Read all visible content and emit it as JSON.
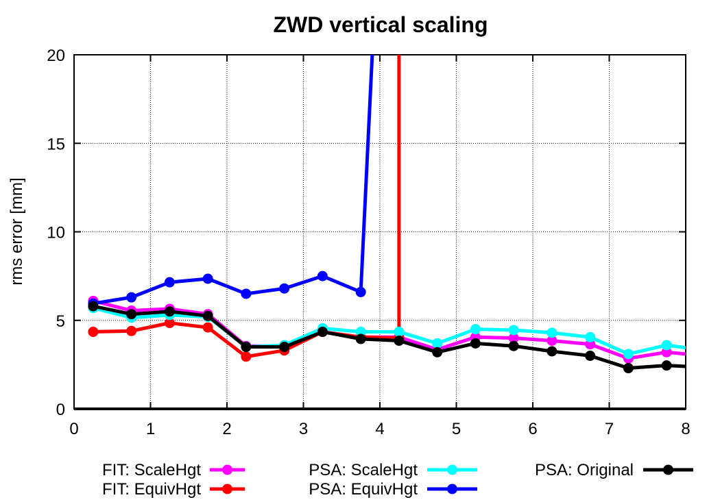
{
  "chart_data": {
    "type": "line",
    "title": "ZWD vertical scaling",
    "xlabel": "",
    "ylabel": "rms error [mm]",
    "xlim": [
      0,
      8
    ],
    "ylim": [
      0,
      20
    ],
    "x_ticks": [
      "0",
      "1",
      "2",
      "3",
      "4",
      "5",
      "6",
      "7",
      "8"
    ],
    "y_ticks": [
      "0",
      "5",
      "10",
      "15",
      "20"
    ],
    "grid": true,
    "legend_position": "bottom",
    "series": [
      {
        "name": "FIT: ScaleHgt",
        "color": "#ff00ff",
        "x": [
          0.25,
          0.75,
          1.25,
          1.75,
          2.25,
          2.75,
          3.25,
          3.75,
          4.25,
          4.75,
          5.25,
          5.75,
          6.25,
          6.75,
          7.25,
          7.75,
          8.0
        ],
        "y": [
          6.1,
          5.55,
          5.65,
          5.35,
          3.55,
          3.55,
          4.35,
          4.05,
          4.05,
          3.35,
          4.05,
          4.0,
          3.85,
          3.65,
          2.85,
          3.2,
          3.1
        ]
      },
      {
        "name": "FIT: EquivHgt",
        "color": "#ff0000",
        "x": [
          0.25,
          0.75,
          1.25,
          1.75,
          2.25,
          2.75,
          3.25,
          3.75,
          4.25,
          4.25
        ],
        "y": [
          4.35,
          4.4,
          4.85,
          4.6,
          2.95,
          3.3,
          4.35,
          4.05,
          4.0,
          20
        ]
      },
      {
        "name": "PSA: ScaleHgt",
        "color": "#00ffff",
        "x": [
          0.25,
          0.75,
          1.25,
          1.75,
          2.25,
          2.75,
          3.25,
          3.75,
          4.25,
          4.75,
          5.25,
          5.75,
          6.25,
          6.75,
          7.25,
          7.75,
          8.0
        ],
        "y": [
          5.7,
          5.15,
          5.3,
          5.2,
          3.5,
          3.6,
          4.55,
          4.35,
          4.35,
          3.7,
          4.5,
          4.45,
          4.3,
          4.05,
          3.1,
          3.6,
          3.45
        ]
      },
      {
        "name": "PSA: EquivHgt",
        "color": "#0000ff",
        "x": [
          0.25,
          0.75,
          1.25,
          1.75,
          2.25,
          2.75,
          3.25,
          3.75,
          3.9
        ],
        "y": [
          5.95,
          6.3,
          7.15,
          7.35,
          6.5,
          6.8,
          7.5,
          6.6,
          20
        ]
      },
      {
        "name": "PSA: Original",
        "color": "#000000",
        "x": [
          0.25,
          0.75,
          1.25,
          1.75,
          2.25,
          2.75,
          3.25,
          3.75,
          4.25,
          4.75,
          5.25,
          5.75,
          6.25,
          6.75,
          7.25,
          7.75,
          8.0
        ],
        "y": [
          5.8,
          5.35,
          5.5,
          5.25,
          3.5,
          3.5,
          4.35,
          3.95,
          3.85,
          3.2,
          3.7,
          3.55,
          3.25,
          3.0,
          2.3,
          2.45,
          2.4
        ]
      }
    ],
    "legend_order": [
      "FIT: ScaleHgt",
      "FIT: EquivHgt",
      "PSA: ScaleHgt",
      "PSA: EquivHgt",
      "PSA: Original"
    ]
  }
}
